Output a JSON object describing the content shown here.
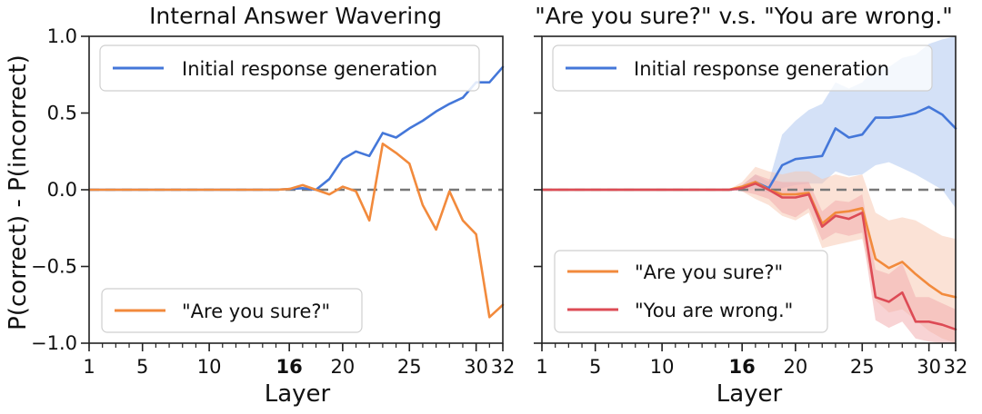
{
  "chart_data": [
    {
      "type": "line",
      "title": "Internal Answer Wavering",
      "xlabel": "Layer",
      "ylabel": "P(correct) - P(incorrect)",
      "xlim": [
        1,
        32
      ],
      "ylim": [
        -1.0,
        1.0
      ],
      "xticks": [
        1,
        5,
        10,
        16,
        20,
        25,
        30,
        32
      ],
      "xticks_bold": [
        16
      ],
      "yticks": [
        -1.0,
        -0.5,
        0.0,
        0.5,
        1.0
      ],
      "ytick_labels": [
        "−1.0",
        "−0.5",
        "0.0",
        "0.5",
        "1.0"
      ],
      "reference_line": 0.0,
      "legend": [
        {
          "series": "Initial response generation",
          "position": "top-left"
        },
        {
          "series": "\"Are you sure?\"",
          "position": "bottom-left"
        }
      ],
      "series": [
        {
          "name": "Initial response generation",
          "color": "#4477d9",
          "x": [
            1,
            2,
            3,
            4,
            5,
            6,
            7,
            8,
            9,
            10,
            11,
            12,
            13,
            14,
            15,
            16,
            17,
            18,
            19,
            20,
            21,
            22,
            23,
            24,
            25,
            26,
            27,
            28,
            29,
            30,
            31,
            32
          ],
          "values": [
            0,
            0,
            0,
            0,
            0,
            0,
            0,
            0,
            0,
            0,
            0,
            0,
            0,
            0,
            0,
            0.005,
            0.01,
            0.0,
            0.07,
            0.2,
            0.25,
            0.22,
            0.37,
            0.34,
            0.4,
            0.45,
            0.51,
            0.56,
            0.6,
            0.7,
            0.7,
            0.8
          ]
        },
        {
          "name": "\"Are you sure?\"",
          "color": "#f28a3c",
          "x": [
            1,
            2,
            3,
            4,
            5,
            6,
            7,
            8,
            9,
            10,
            11,
            12,
            13,
            14,
            15,
            16,
            17,
            18,
            19,
            20,
            21,
            22,
            23,
            24,
            25,
            26,
            27,
            28,
            29,
            30,
            31,
            32
          ],
          "values": [
            0,
            0,
            0,
            0,
            0,
            0,
            0,
            0,
            0,
            0,
            0,
            0,
            0,
            0,
            0,
            0.005,
            0.03,
            0.0,
            -0.03,
            0.02,
            -0.01,
            -0.2,
            0.3,
            0.24,
            0.17,
            -0.1,
            -0.26,
            -0.01,
            -0.2,
            -0.29,
            -0.83,
            -0.75
          ]
        }
      ]
    },
    {
      "type": "line",
      "title": "\"Are you sure?\" v.s. \"You are wrong.\"",
      "xlabel": "Layer",
      "ylabel": "",
      "xlim": [
        1,
        32
      ],
      "ylim": [
        -1.0,
        1.0
      ],
      "xticks": [
        1,
        5,
        10,
        16,
        20,
        25,
        30,
        32
      ],
      "xticks_bold": [
        16
      ],
      "yticks": [
        -1.0,
        -0.5,
        0.0,
        0.5,
        1.0
      ],
      "ytick_labels": [
        "",
        "",
        "",
        "",
        ""
      ],
      "reference_line": 0.0,
      "legend": [
        {
          "series": "Initial response generation",
          "position": "top-left"
        },
        {
          "series": "\"Are you sure?\"",
          "position": "bottom-left"
        },
        {
          "series": "\"You are wrong.\"",
          "position": "bottom-left"
        }
      ],
      "series": [
        {
          "name": "Initial response generation",
          "color": "#4477d9",
          "band_color": "#a9c4ef",
          "x": [
            1,
            2,
            3,
            4,
            5,
            6,
            7,
            8,
            9,
            10,
            11,
            12,
            13,
            14,
            15,
            16,
            17,
            18,
            19,
            20,
            21,
            22,
            23,
            24,
            25,
            26,
            27,
            28,
            29,
            30,
            31,
            32
          ],
          "values": [
            0,
            0,
            0,
            0,
            0,
            0,
            0,
            0,
            0,
            0,
            0,
            0,
            0,
            0,
            0,
            0.01,
            0.05,
            0.01,
            0.16,
            0.2,
            0.21,
            0.22,
            0.4,
            0.34,
            0.36,
            0.47,
            0.47,
            0.48,
            0.5,
            0.54,
            0.49,
            0.4
          ],
          "lower": [
            0,
            0,
            0,
            0,
            0,
            0,
            0,
            0,
            0,
            0,
            0,
            0,
            0,
            0,
            0,
            -0.01,
            0.0,
            -0.02,
            0.01,
            0.03,
            0.04,
            0.04,
            0.12,
            0.09,
            0.1,
            0.16,
            0.18,
            0.14,
            0.1,
            0.05,
            0.0,
            -0.12
          ],
          "upper": [
            0,
            0,
            0,
            0,
            0,
            0,
            0,
            0,
            0,
            0,
            0,
            0,
            0,
            0,
            0,
            0.03,
            0.1,
            0.05,
            0.36,
            0.45,
            0.52,
            0.56,
            0.7,
            0.66,
            0.7,
            0.8,
            0.8,
            0.86,
            0.88,
            0.95,
            0.98,
            1.0
          ]
        },
        {
          "name": "\"Are you sure?\"",
          "color": "#f28a3c",
          "band_color": "#f8c5ad",
          "x": [
            1,
            2,
            3,
            4,
            5,
            6,
            7,
            8,
            9,
            10,
            11,
            12,
            13,
            14,
            15,
            16,
            17,
            18,
            19,
            20,
            21,
            22,
            23,
            24,
            25,
            26,
            27,
            28,
            29,
            30,
            31,
            32
          ],
          "values": [
            0,
            0,
            0,
            0,
            0,
            0,
            0,
            0,
            0,
            0,
            0,
            0,
            0,
            0,
            0,
            0.02,
            0.05,
            0.0,
            -0.03,
            -0.03,
            -0.02,
            -0.22,
            -0.15,
            -0.14,
            -0.12,
            -0.45,
            -0.51,
            -0.47,
            -0.55,
            -0.62,
            -0.68,
            -0.7
          ],
          "lower": [
            0,
            0,
            0,
            0,
            0,
            0,
            0,
            0,
            0,
            0,
            0,
            0,
            0,
            0,
            0,
            -0.01,
            -0.06,
            -0.1,
            -0.17,
            -0.2,
            -0.15,
            -0.38,
            -0.36,
            -0.34,
            -0.32,
            -0.72,
            -0.8,
            -0.78,
            -0.85,
            -0.92,
            -0.97,
            -1.0
          ],
          "upper": [
            0,
            0,
            0,
            0,
            0,
            0,
            0,
            0,
            0,
            0,
            0,
            0,
            0,
            0,
            0,
            0.05,
            0.15,
            0.12,
            0.1,
            0.12,
            0.12,
            0.07,
            0.1,
            0.08,
            0.1,
            -0.15,
            -0.2,
            -0.18,
            -0.2,
            -0.25,
            -0.3,
            -0.32
          ]
        },
        {
          "name": "\"You are wrong.\"",
          "color": "#dd4b55",
          "band_color": "#f2a7aa",
          "x": [
            1,
            2,
            3,
            4,
            5,
            6,
            7,
            8,
            9,
            10,
            11,
            12,
            13,
            14,
            15,
            16,
            17,
            18,
            19,
            20,
            21,
            22,
            23,
            24,
            25,
            26,
            27,
            28,
            29,
            30,
            31,
            32
          ],
          "values": [
            0,
            0,
            0,
            0,
            0,
            0,
            0,
            0,
            0,
            0,
            0,
            0,
            0,
            0,
            0,
            0.01,
            0.04,
            0.0,
            -0.05,
            -0.05,
            -0.03,
            -0.24,
            -0.17,
            -0.19,
            -0.15,
            -0.7,
            -0.73,
            -0.67,
            -0.86,
            -0.86,
            -0.88,
            -0.91
          ],
          "lower": [
            0,
            0,
            0,
            0,
            0,
            0,
            0,
            0,
            0,
            0,
            0,
            0,
            0,
            0,
            0,
            -0.01,
            -0.03,
            -0.06,
            -0.15,
            -0.18,
            -0.12,
            -0.33,
            -0.28,
            -0.3,
            -0.28,
            -0.85,
            -0.9,
            -0.86,
            -0.97,
            -0.99,
            -1.0,
            -1.0
          ],
          "upper": [
            0,
            0,
            0,
            0,
            0,
            0,
            0,
            0,
            0,
            0,
            0,
            0,
            0,
            0,
            0,
            0.03,
            0.1,
            0.07,
            0.05,
            0.05,
            0.05,
            -0.14,
            -0.07,
            -0.08,
            -0.03,
            -0.52,
            -0.55,
            -0.48,
            -0.7,
            -0.7,
            -0.74,
            -0.78
          ]
        }
      ]
    }
  ]
}
